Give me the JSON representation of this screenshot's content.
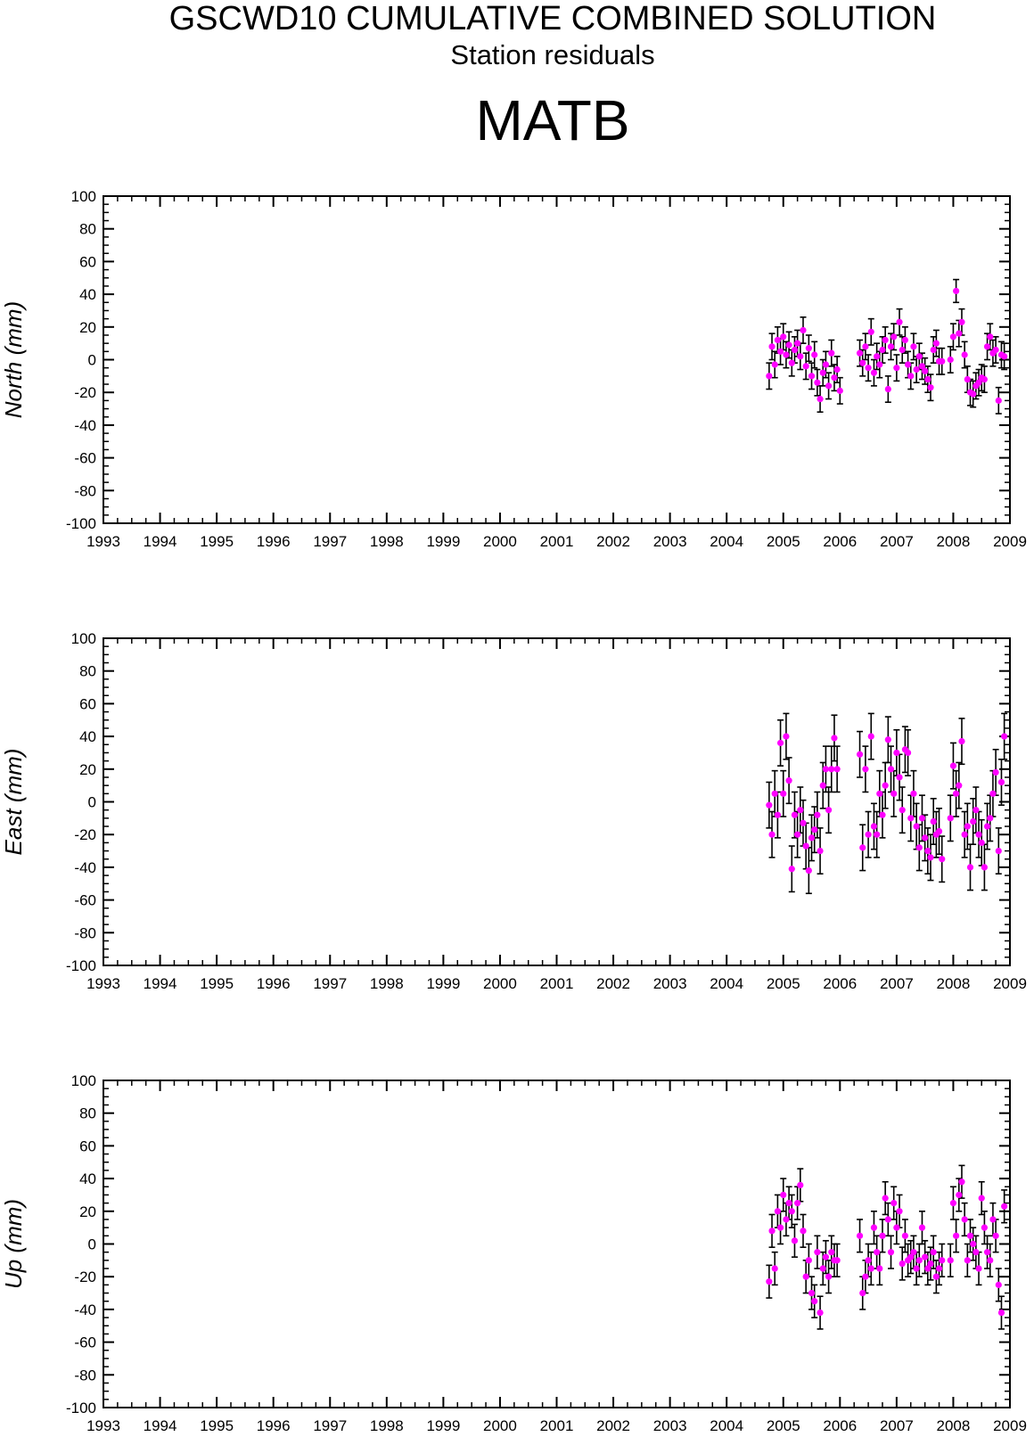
{
  "header": {
    "title": "GSCWD10 CUMULATIVE COMBINED SOLUTION",
    "subtitle": "Station residuals",
    "station": "MATB"
  },
  "colors": {
    "marker": "#ff00ff",
    "error_bar": "#000000",
    "axis": "#000000"
  },
  "chart_data": [
    {
      "type": "scatter",
      "ylabel": "North (mm)",
      "xlim": [
        1993,
        2009
      ],
      "ylim": [
        -100,
        100
      ],
      "xticks": [
        "1993",
        "1994",
        "1995",
        "1996",
        "1997",
        "1998",
        "1999",
        "2000",
        "2001",
        "2002",
        "2003",
        "2004",
        "2005",
        "2006",
        "2007",
        "2008",
        "2009"
      ],
      "yticks": [
        "100",
        "80",
        "60",
        "40",
        "20",
        "0",
        "-20",
        "-40",
        "-60",
        "-80",
        "-100"
      ],
      "series": [
        {
          "x": [
            2004.75,
            2004.8,
            2004.85,
            2004.9,
            2004.95,
            2005.0,
            2005.05,
            2005.1,
            2005.15,
            2005.2,
            2005.25,
            2005.3,
            2005.35,
            2005.4,
            2005.45,
            2005.5,
            2005.55,
            2005.6,
            2005.65,
            2005.7,
            2005.75,
            2005.8,
            2005.85,
            2005.9,
            2005.95,
            2006.0,
            2006.35,
            2006.4,
            2006.45,
            2006.5,
            2006.55,
            2006.6,
            2006.65,
            2006.7,
            2006.75,
            2006.8,
            2006.85,
            2006.9,
            2006.95,
            2007.0,
            2007.05,
            2007.1,
            2007.15,
            2007.2,
            2007.25,
            2007.3,
            2007.35,
            2007.4,
            2007.45,
            2007.5,
            2007.55,
            2007.6,
            2007.65,
            2007.7,
            2007.75,
            2007.8,
            2007.95,
            2008.0,
            2008.05,
            2008.1,
            2008.15,
            2008.2,
            2008.25,
            2008.3,
            2008.35,
            2008.4,
            2008.45,
            2008.5,
            2008.55,
            2008.6,
            2008.65,
            2008.7,
            2008.75,
            2008.8,
            2008.85,
            2008.9
          ],
          "y": [
            -10,
            8,
            -3,
            12,
            5,
            14,
            3,
            9,
            -2,
            6,
            10,
            2,
            18,
            -4,
            7,
            -10,
            3,
            -14,
            -24,
            -8,
            -3,
            -16,
            4,
            -11,
            -6,
            -19,
            4,
            -2,
            8,
            -5,
            17,
            -8,
            2,
            -3,
            6,
            12,
            -18,
            8,
            14,
            -5,
            23,
            6,
            12,
            -3,
            -10,
            8,
            -6,
            2,
            -4,
            -7,
            -12,
            -17,
            6,
            10,
            -1,
            -1,
            0,
            14,
            42,
            16,
            23,
            3,
            -12,
            -20,
            -21,
            -16,
            -14,
            -11,
            -12,
            8,
            14,
            4,
            6,
            -25,
            3,
            2
          ],
          "err": [
            8,
            8,
            8,
            8,
            8,
            8,
            8,
            8,
            8,
            8,
            8,
            8,
            8,
            8,
            8,
            8,
            8,
            8,
            8,
            8,
            8,
            8,
            8,
            8,
            8,
            8,
            8,
            8,
            8,
            8,
            8,
            8,
            8,
            8,
            8,
            8,
            8,
            8,
            8,
            8,
            8,
            8,
            8,
            8,
            8,
            8,
            8,
            8,
            8,
            8,
            8,
            8,
            8,
            8,
            8,
            8,
            8,
            8,
            7,
            8,
            8,
            8,
            8,
            8,
            8,
            8,
            8,
            8,
            8,
            8,
            8,
            8,
            8,
            8,
            8,
            8
          ]
        }
      ]
    },
    {
      "type": "scatter",
      "ylabel": "East (mm)",
      "xlim": [
        1993,
        2009
      ],
      "ylim": [
        -100,
        100
      ],
      "xticks": [
        "1993",
        "1994",
        "1995",
        "1996",
        "1997",
        "1998",
        "1999",
        "2000",
        "2001",
        "2002",
        "2003",
        "2004",
        "2005",
        "2006",
        "2007",
        "2008",
        "2009"
      ],
      "yticks": [
        "100",
        "80",
        "60",
        "40",
        "20",
        "0",
        "-20",
        "-40",
        "-60",
        "-80",
        "-100"
      ],
      "series": [
        {
          "x": [
            2004.75,
            2004.8,
            2004.85,
            2004.9,
            2004.95,
            2005.0,
            2005.05,
            2005.1,
            2005.15,
            2005.2,
            2005.25,
            2005.3,
            2005.35,
            2005.4,
            2005.45,
            2005.5,
            2005.55,
            2005.6,
            2005.65,
            2005.7,
            2005.75,
            2005.8,
            2005.85,
            2005.9,
            2005.95,
            2006.35,
            2006.4,
            2006.45,
            2006.5,
            2006.55,
            2006.6,
            2006.65,
            2006.7,
            2006.75,
            2006.8,
            2006.85,
            2006.9,
            2006.95,
            2007.0,
            2007.05,
            2007.1,
            2007.15,
            2007.2,
            2007.25,
            2007.3,
            2007.35,
            2007.4,
            2007.45,
            2007.5,
            2007.55,
            2007.6,
            2007.65,
            2007.7,
            2007.75,
            2007.8,
            2007.95,
            2008.0,
            2008.05,
            2008.1,
            2008.15,
            2008.2,
            2008.25,
            2008.3,
            2008.35,
            2008.4,
            2008.45,
            2008.5,
            2008.55,
            2008.6,
            2008.65,
            2008.7,
            2008.75,
            2008.8,
            2008.85,
            2008.9
          ],
          "y": [
            -2,
            -20,
            5,
            -8,
            36,
            5,
            40,
            13,
            -41,
            -8,
            -20,
            -5,
            -13,
            -27,
            -42,
            -22,
            -17,
            -8,
            -30,
            10,
            20,
            -5,
            20,
            39,
            20,
            29,
            -28,
            20,
            -20,
            40,
            -15,
            -20,
            5,
            -8,
            10,
            38,
            20,
            5,
            30,
            15,
            -5,
            32,
            30,
            -10,
            5,
            -15,
            -28,
            -10,
            -22,
            -30,
            -34,
            -12,
            -20,
            -18,
            -35,
            -10,
            22,
            5,
            10,
            37,
            -20,
            -15,
            -40,
            -12,
            -5,
            -20,
            -25,
            -40,
            -15,
            -10,
            5,
            18,
            -30,
            12,
            40
          ],
          "err": [
            14,
            14,
            14,
            14,
            14,
            14,
            14,
            14,
            14,
            14,
            14,
            14,
            14,
            14,
            14,
            14,
            14,
            14,
            14,
            14,
            14,
            14,
            14,
            14,
            14,
            14,
            14,
            14,
            14,
            14,
            14,
            14,
            14,
            14,
            14,
            14,
            14,
            14,
            14,
            14,
            14,
            14,
            14,
            14,
            14,
            14,
            14,
            14,
            14,
            14,
            14,
            14,
            14,
            14,
            14,
            14,
            14,
            14,
            14,
            14,
            14,
            14,
            14,
            14,
            14,
            14,
            14,
            14,
            14,
            14,
            14,
            14,
            14,
            14,
            14
          ]
        }
      ]
    },
    {
      "type": "scatter",
      "ylabel": "Up (mm)",
      "xlim": [
        1993,
        2009
      ],
      "ylim": [
        -100,
        100
      ],
      "xticks": [
        "1993",
        "1994",
        "1995",
        "1996",
        "1997",
        "1998",
        "1999",
        "2000",
        "2001",
        "2002",
        "2003",
        "2004",
        "2005",
        "2006",
        "2007",
        "2008",
        "2009"
      ],
      "yticks": [
        "100",
        "80",
        "60",
        "40",
        "20",
        "0",
        "-20",
        "-40",
        "-60",
        "-80",
        "-100"
      ],
      "series": [
        {
          "x": [
            2004.75,
            2004.8,
            2004.85,
            2004.9,
            2004.95,
            2005.0,
            2005.05,
            2005.1,
            2005.15,
            2005.2,
            2005.25,
            2005.3,
            2005.35,
            2005.4,
            2005.45,
            2005.5,
            2005.55,
            2005.6,
            2005.65,
            2005.7,
            2005.75,
            2005.8,
            2005.85,
            2005.9,
            2005.95,
            2006.35,
            2006.4,
            2006.45,
            2006.5,
            2006.55,
            2006.6,
            2006.65,
            2006.7,
            2006.75,
            2006.8,
            2006.85,
            2006.9,
            2006.95,
            2007.0,
            2007.05,
            2007.1,
            2007.15,
            2007.2,
            2007.25,
            2007.3,
            2007.35,
            2007.4,
            2007.45,
            2007.5,
            2007.55,
            2007.6,
            2007.65,
            2007.7,
            2007.75,
            2007.8,
            2007.95,
            2008.0,
            2008.05,
            2008.1,
            2008.15,
            2008.2,
            2008.25,
            2008.3,
            2008.35,
            2008.4,
            2008.45,
            2008.5,
            2008.55,
            2008.6,
            2008.65,
            2008.7,
            2008.75,
            2008.8,
            2008.85,
            2008.9
          ],
          "y": [
            -23,
            8,
            -15,
            20,
            10,
            30,
            15,
            25,
            20,
            2,
            25,
            36,
            8,
            -20,
            -10,
            -30,
            -35,
            -5,
            -42,
            -15,
            -8,
            -20,
            -5,
            -10,
            -10,
            5,
            -30,
            -20,
            -10,
            -15,
            10,
            -5,
            -15,
            5,
            28,
            15,
            -5,
            25,
            10,
            20,
            -12,
            5,
            -10,
            -8,
            -5,
            -15,
            -10,
            10,
            -8,
            -15,
            -12,
            -5,
            -20,
            -15,
            -10,
            -10,
            25,
            5,
            30,
            38,
            15,
            -10,
            5,
            0,
            -5,
            -15,
            28,
            10,
            -5,
            -10,
            15,
            5,
            -25,
            -42,
            23
          ],
          "err": [
            10,
            10,
            10,
            10,
            10,
            10,
            10,
            10,
            10,
            10,
            10,
            10,
            10,
            10,
            10,
            10,
            10,
            10,
            10,
            10,
            10,
            10,
            10,
            10,
            10,
            10,
            10,
            10,
            10,
            10,
            10,
            10,
            10,
            10,
            10,
            10,
            10,
            10,
            10,
            10,
            10,
            10,
            10,
            10,
            10,
            10,
            10,
            10,
            10,
            10,
            10,
            10,
            10,
            10,
            10,
            10,
            10,
            10,
            10,
            10,
            10,
            10,
            10,
            10,
            10,
            10,
            10,
            10,
            10,
            10,
            10,
            10,
            10,
            10,
            10
          ]
        }
      ]
    }
  ]
}
